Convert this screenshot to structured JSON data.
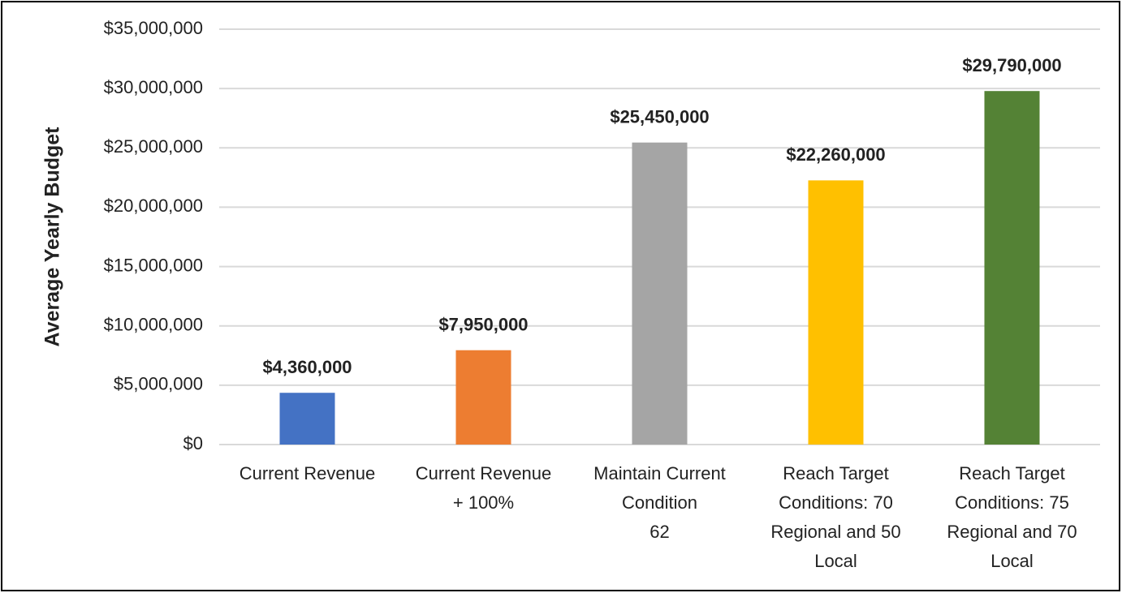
{
  "chart_data": {
    "type": "bar",
    "ylabel": "Average Yearly Budget",
    "categories": [
      [
        "Current Revenue"
      ],
      [
        "Current Revenue",
        "+ 100%"
      ],
      [
        "Maintain Current",
        "Condition",
        "62"
      ],
      [
        "Reach Target",
        "Conditions: 70",
        "Regional and 50",
        "Local"
      ],
      [
        "Reach Target",
        "Conditions: 75",
        "Regional and 70",
        "Local"
      ]
    ],
    "values": [
      4360000,
      7950000,
      25450000,
      22260000,
      29790000
    ],
    "value_labels": [
      "$4,360,000",
      "$7,950,000",
      "$25,450,000",
      "$22,260,000",
      "$29,790,000"
    ],
    "colors": [
      "#4472c4",
      "#ed7d31",
      "#a5a5a5",
      "#ffc000",
      "#548235"
    ],
    "ylim": [
      0,
      35000000
    ],
    "yticks": [
      {
        "value": 0,
        "label": "$0"
      },
      {
        "value": 5000000,
        "label": "$5,000,000"
      },
      {
        "value": 10000000,
        "label": "$10,000,000"
      },
      {
        "value": 15000000,
        "label": "$15,000,000"
      },
      {
        "value": 20000000,
        "label": "$20,000,000"
      },
      {
        "value": 25000000,
        "label": "$25,000,000"
      },
      {
        "value": 30000000,
        "label": "$30,000,000"
      },
      {
        "value": 35000000,
        "label": "$35,000,000"
      }
    ],
    "grid": true
  }
}
